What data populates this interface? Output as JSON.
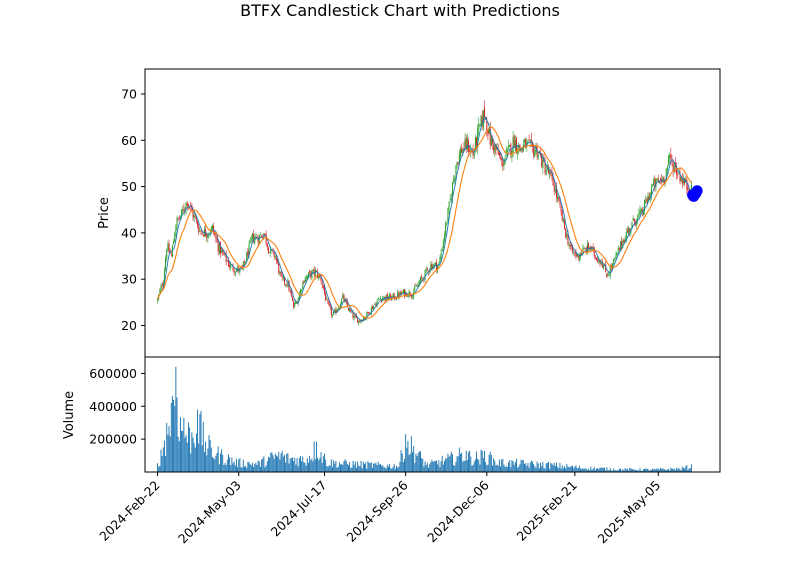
{
  "chart_data": [
    {
      "type": "candlestick",
      "title": "BTFX Candlestick Chart with Predictions",
      "xlabel": "",
      "ylabel": "Price",
      "ylim": [
        13.2,
        75.4
      ],
      "xlim": [
        "2024-02-11",
        "2025-06-28"
      ],
      "yticks": [
        20,
        30,
        40,
        50,
        60,
        70
      ],
      "xtick_labels": [
        "2024-Feb-22",
        "2024-May-03",
        "2024-Jul-17",
        "2024-Sep-26",
        "2024-Dec-06",
        "2025-Feb-21",
        "2025-May-05"
      ],
      "xtick_dates": [
        "2024-02-22",
        "2024-05-03",
        "2024-07-17",
        "2024-09-26",
        "2024-12-06",
        "2025-02-21",
        "2025-05-05"
      ],
      "grid": false,
      "colors": {
        "up": "#2ca02c",
        "down": "#d62728",
        "ma_short": "#1f77b4",
        "ma_long": "#ff7f0e",
        "prediction": "#0000ff"
      },
      "close_anchors": [
        [
          "2024-02-22",
          25.5
        ],
        [
          "2024-02-27",
          30
        ],
        [
          "2024-03-01",
          37
        ],
        [
          "2024-03-05",
          35
        ],
        [
          "2024-03-09",
          42
        ],
        [
          "2024-03-14",
          44
        ],
        [
          "2024-03-19",
          47
        ],
        [
          "2024-03-24",
          44
        ],
        [
          "2024-03-30",
          40.5
        ],
        [
          "2024-04-05",
          40
        ],
        [
          "2024-04-10",
          41
        ],
        [
          "2024-04-15",
          37
        ],
        [
          "2024-04-20",
          35
        ],
        [
          "2024-04-25",
          33
        ],
        [
          "2024-05-01",
          32
        ],
        [
          "2024-05-06",
          32
        ],
        [
          "2024-05-10",
          35
        ],
        [
          "2024-05-15",
          39
        ],
        [
          "2024-05-20",
          39
        ],
        [
          "2024-05-25",
          40
        ],
        [
          "2024-05-30",
          36
        ],
        [
          "2024-06-04",
          35
        ],
        [
          "2024-06-09",
          30
        ],
        [
          "2024-06-15",
          29
        ],
        [
          "2024-06-20",
          24
        ],
        [
          "2024-06-24",
          26
        ],
        [
          "2024-06-29",
          30
        ],
        [
          "2024-07-04",
          31
        ],
        [
          "2024-07-09",
          31.5
        ],
        [
          "2024-07-14",
          30
        ],
        [
          "2024-07-19",
          25
        ],
        [
          "2024-07-24",
          22
        ],
        [
          "2024-07-29",
          24
        ],
        [
          "2024-08-02",
          26
        ],
        [
          "2024-08-06",
          24
        ],
        [
          "2024-08-11",
          22
        ],
        [
          "2024-08-16",
          21
        ],
        [
          "2024-08-22",
          22
        ],
        [
          "2024-08-28",
          24
        ],
        [
          "2024-09-04",
          26
        ],
        [
          "2024-09-14",
          26
        ],
        [
          "2024-09-24",
          27
        ],
        [
          "2024-10-02",
          27
        ],
        [
          "2024-10-10",
          30
        ],
        [
          "2024-10-18",
          33
        ],
        [
          "2024-10-25",
          33
        ],
        [
          "2024-10-30",
          40
        ],
        [
          "2024-11-04",
          47
        ],
        [
          "2024-11-09",
          55
        ],
        [
          "2024-11-14",
          58
        ],
        [
          "2024-11-19",
          59
        ],
        [
          "2024-11-24",
          57
        ],
        [
          "2024-11-29",
          62
        ],
        [
          "2024-12-04",
          66
        ],
        [
          "2024-12-09",
          60
        ],
        [
          "2024-12-14",
          58
        ],
        [
          "2024-12-19",
          55
        ],
        [
          "2024-12-24",
          57
        ],
        [
          "2024-12-30",
          60
        ],
        [
          "2025-01-04",
          58
        ],
        [
          "2025-01-09",
          59
        ],
        [
          "2025-01-14",
          58
        ],
        [
          "2025-01-19",
          58
        ],
        [
          "2025-01-24",
          55
        ],
        [
          "2025-01-29",
          53
        ],
        [
          "2025-02-03",
          50
        ],
        [
          "2025-02-08",
          45
        ],
        [
          "2025-02-13",
          40
        ],
        [
          "2025-02-18",
          36
        ],
        [
          "2025-02-23",
          35
        ],
        [
          "2025-02-28",
          36
        ],
        [
          "2025-03-06",
          37
        ],
        [
          "2025-03-11",
          35
        ],
        [
          "2025-03-16",
          34
        ],
        [
          "2025-03-21",
          31
        ],
        [
          "2025-03-26",
          33
        ],
        [
          "2025-03-31",
          36
        ],
        [
          "2025-04-05",
          39
        ],
        [
          "2025-04-10",
          41
        ],
        [
          "2025-04-15",
          43
        ],
        [
          "2025-04-20",
          44
        ],
        [
          "2025-04-25",
          47
        ],
        [
          "2025-04-30",
          50
        ],
        [
          "2025-05-05",
          51
        ],
        [
          "2025-05-10",
          52
        ],
        [
          "2025-05-15",
          56
        ],
        [
          "2025-05-20",
          54
        ],
        [
          "2025-05-25",
          52
        ],
        [
          "2025-05-30",
          50
        ],
        [
          "2025-06-03",
          49
        ]
      ],
      "predictions": [
        [
          "2025-06-04",
          48.2
        ],
        [
          "2025-06-05",
          47.9
        ],
        [
          "2025-06-06",
          48.3
        ],
        [
          "2025-06-07",
          48.6
        ],
        [
          "2025-06-08",
          49.1
        ]
      ]
    },
    {
      "type": "bar",
      "title": "",
      "xlabel": "",
      "ylabel": "Volume",
      "ylim": [
        0,
        700000
      ],
      "yticks": [
        200000,
        400000,
        600000
      ],
      "ytick_labels": [
        "200000",
        "400000",
        "600000"
      ],
      "grid": false,
      "colors": {
        "bar": "#1f77b4"
      },
      "volume_anchors": [
        [
          "2024-02-20",
          30000
        ],
        [
          "2024-02-25",
          120000
        ],
        [
          "2024-03-01",
          300000
        ],
        [
          "2024-03-05",
          420000
        ],
        [
          "2024-03-09",
          640000
        ],
        [
          "2024-03-13",
          330000
        ],
        [
          "2024-03-18",
          280000
        ],
        [
          "2024-03-23",
          260000
        ],
        [
          "2024-03-28",
          380000
        ],
        [
          "2024-04-03",
          220000
        ],
        [
          "2024-04-10",
          150000
        ],
        [
          "2024-04-20",
          110000
        ],
        [
          "2024-05-01",
          70000
        ],
        [
          "2024-05-20",
          60000
        ],
        [
          "2024-06-05",
          120000
        ],
        [
          "2024-06-15",
          100000
        ],
        [
          "2024-07-01",
          90000
        ],
        [
          "2024-07-10",
          180000
        ],
        [
          "2024-07-20",
          70000
        ],
        [
          "2024-08-10",
          60000
        ],
        [
          "2024-09-01",
          50000
        ],
        [
          "2024-09-20",
          45000
        ],
        [
          "2024-09-26",
          230000
        ],
        [
          "2024-10-15",
          50000
        ],
        [
          "2024-11-05",
          100000
        ],
        [
          "2024-11-15",
          130000
        ],
        [
          "2024-11-25",
          100000
        ],
        [
          "2024-12-05",
          120000
        ],
        [
          "2024-12-15",
          70000
        ],
        [
          "2025-01-10",
          60000
        ],
        [
          "2025-02-01",
          50000
        ],
        [
          "2025-02-15",
          40000
        ],
        [
          "2025-03-01",
          30000
        ],
        [
          "2025-04-01",
          20000
        ],
        [
          "2025-05-01",
          18000
        ],
        [
          "2025-05-25",
          25000
        ],
        [
          "2025-06-05",
          45000
        ]
      ],
      "volume_spikes": [
        [
          "2024-03-09",
          640000
        ],
        [
          "2024-03-05",
          420000
        ],
        [
          "2024-03-16",
          330000
        ],
        [
          "2024-03-28",
          380000
        ],
        [
          "2024-07-10",
          185000
        ],
        [
          "2024-09-26",
          230000
        ],
        [
          "2024-06-10",
          130000
        ],
        [
          "2024-11-18",
          130000
        ],
        [
          "2024-12-10",
          105000
        ]
      ]
    }
  ]
}
